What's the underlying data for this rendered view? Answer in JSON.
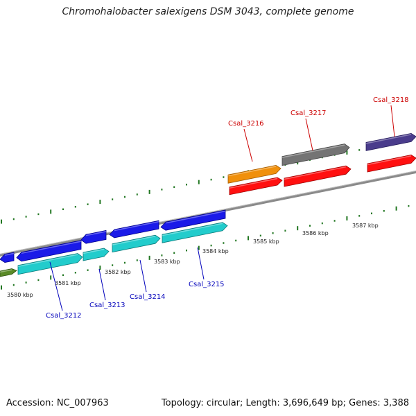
{
  "title": "Chromohalobacter salexigens DSM 3043, complete genome",
  "footer": {
    "accession": "Accession: NC_007963",
    "topology": "Topology: circular; Length: 3,696,649 bp; Genes: 3,388"
  },
  "colors": {
    "forward_label": "#cc0000",
    "reverse_label": "#0000bb",
    "backbone": "#888888",
    "tick": "#227722"
  },
  "tick_labels": [
    "3580 kbp",
    "3581 kbp",
    "3582 kbp",
    "3583 kbp",
    "3584 kbp",
    "3585 kbp",
    "3586 kbp",
    "3587 kbp"
  ],
  "genes_forward": [
    {
      "label": "Csal_3216"
    },
    {
      "label": "Csal_3217"
    },
    {
      "label": "Csal_3218"
    }
  ],
  "genes_reverse": [
    {
      "label": "Csal_3212"
    },
    {
      "label": "Csal_3213"
    },
    {
      "label": "Csal_3214"
    },
    {
      "label": "Csal_3215"
    }
  ]
}
